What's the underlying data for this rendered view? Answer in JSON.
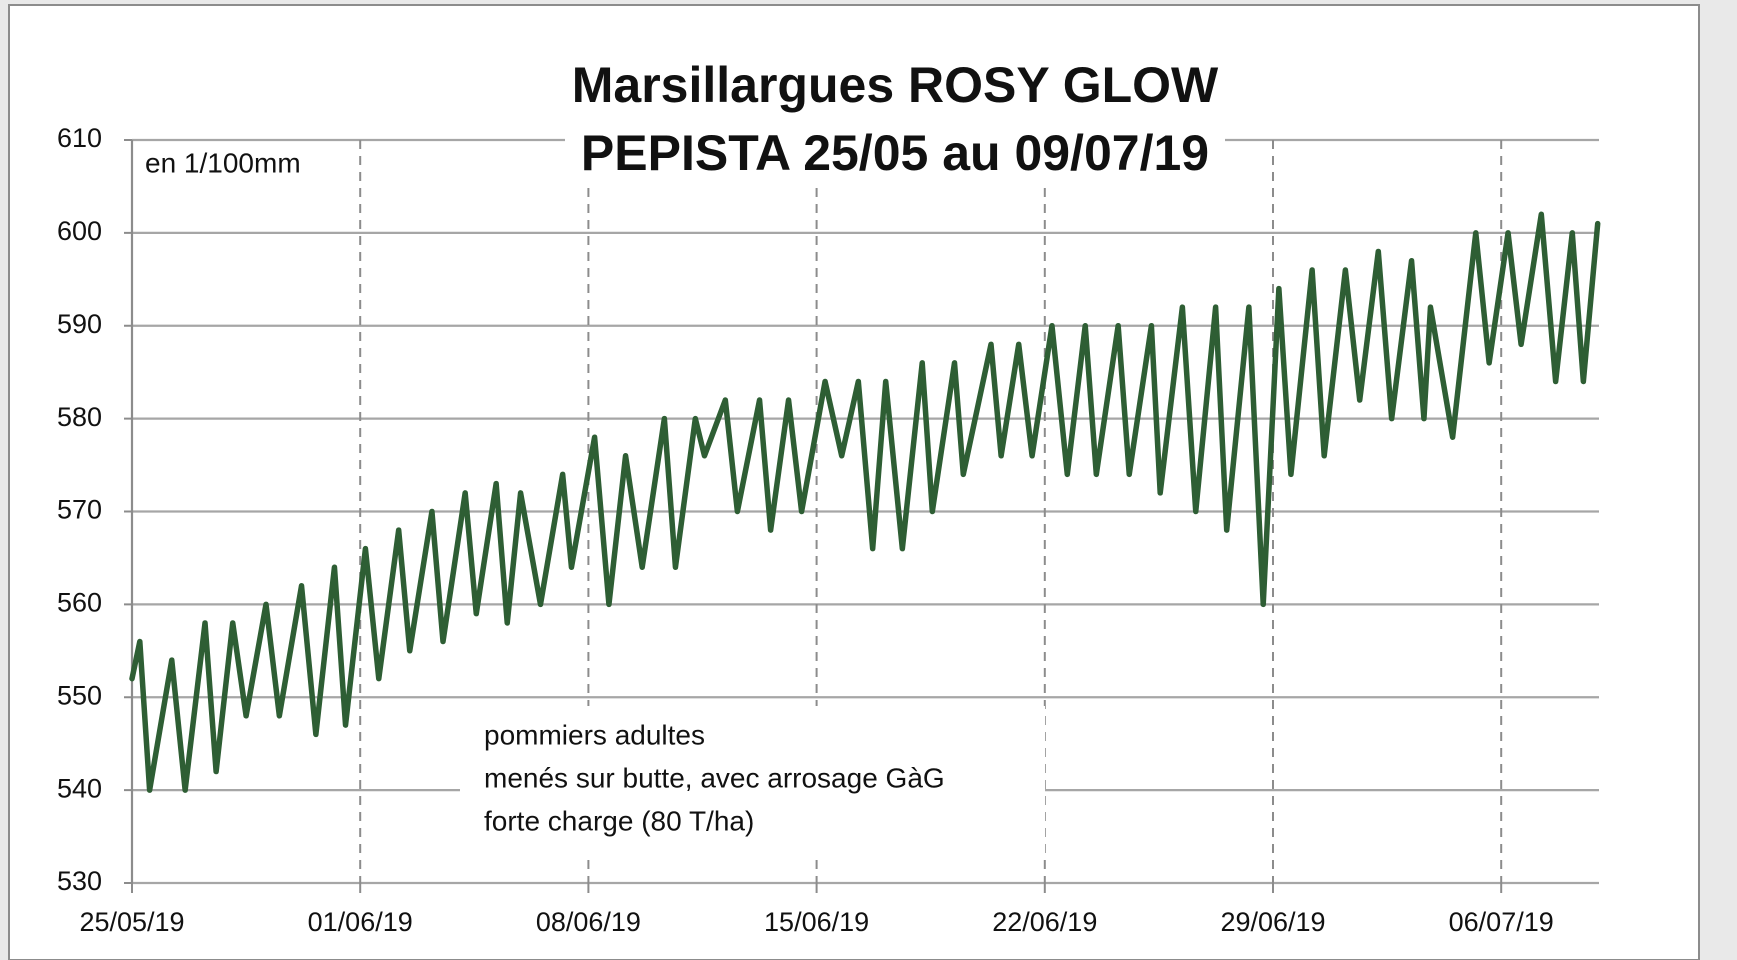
{
  "chart_data": {
    "type": "line",
    "title": [
      "Marsillargues ROSY GLOW",
      "PEPISTA 25/05 au 09/07/19"
    ],
    "annotations": [
      "en 1/100mm"
    ],
    "note": [
      "pommiers adultes",
      "menés sur butte, avec arrosage GàG",
      "forte charge (80 T/ha)"
    ],
    "xlim": [
      0,
      45
    ],
    "xticks": [
      {
        "value": 0,
        "label": "25/05/19"
      },
      {
        "value": 7,
        "label": "01/06/19"
      },
      {
        "value": 14,
        "label": "08/06/19"
      },
      {
        "value": 21,
        "label": "15/06/19"
      },
      {
        "value": 28,
        "label": "22/06/19"
      },
      {
        "value": 35,
        "label": "29/06/19"
      },
      {
        "value": 42,
        "label": "06/07/19"
      }
    ],
    "ylim": [
      530,
      610
    ],
    "yticks": [
      530,
      540,
      550,
      560,
      570,
      580,
      590,
      600,
      610
    ],
    "grid": true,
    "x": [
      0,
      0.24,
      0.54,
      1.22,
      1.63,
      2.24,
      2.58,
      3.09,
      3.5,
      4.11,
      4.52,
      5.2,
      5.64,
      6.21,
      6.55,
      7.16,
      7.57,
      8.18,
      8.52,
      9.2,
      9.54,
      10.22,
      10.56,
      11.17,
      11.51,
      11.92,
      12.53,
      13.21,
      13.48,
      14.19,
      14.63,
      15.14,
      15.65,
      16.33,
      16.67,
      17.28,
      17.56,
      18.2,
      18.57,
      19.25,
      19.59,
      20.14,
      20.54,
      21.26,
      21.77,
      22.28,
      22.72,
      23.12,
      23.63,
      24.24,
      24.55,
      25.23,
      25.5,
      26.35,
      26.66,
      27.2,
      27.61,
      28.22,
      28.69,
      29.24,
      29.58,
      30.25,
      30.59,
      31.27,
      31.54,
      32.22,
      32.63,
      33.24,
      33.58,
      34.26,
      34.7,
      35.18,
      35.55,
      36.2,
      36.57,
      37.22,
      37.66,
      38.23,
      38.64,
      39.25,
      39.63,
      39.83,
      40.51,
      41.22,
      41.63,
      42.21,
      42.61,
      43.23,
      43.67,
      44.18,
      44.52,
      44.96
    ],
    "series": [
      {
        "color": "#2e5e34",
        "values": [
          552,
          556,
          540,
          554,
          540,
          558,
          542,
          558,
          548,
          560,
          548,
          562,
          546,
          564,
          547,
          566,
          552,
          568,
          555,
          570,
          556,
          572,
          559,
          573,
          558,
          572,
          560,
          574,
          564,
          578,
          560,
          576,
          564,
          580,
          564,
          580,
          576,
          582,
          570,
          582,
          568,
          582,
          570,
          584,
          576,
          584,
          566,
          584,
          566,
          586,
          570,
          586,
          574,
          588,
          576,
          588,
          576,
          590,
          574,
          590,
          574,
          590,
          574,
          590,
          572,
          592,
          570,
          592,
          568,
          592,
          560,
          594,
          574,
          596,
          576,
          596,
          582,
          598,
          580,
          597,
          580,
          592,
          578,
          600,
          586,
          600,
          588,
          602,
          584,
          600,
          584,
          601
        ]
      }
    ]
  }
}
